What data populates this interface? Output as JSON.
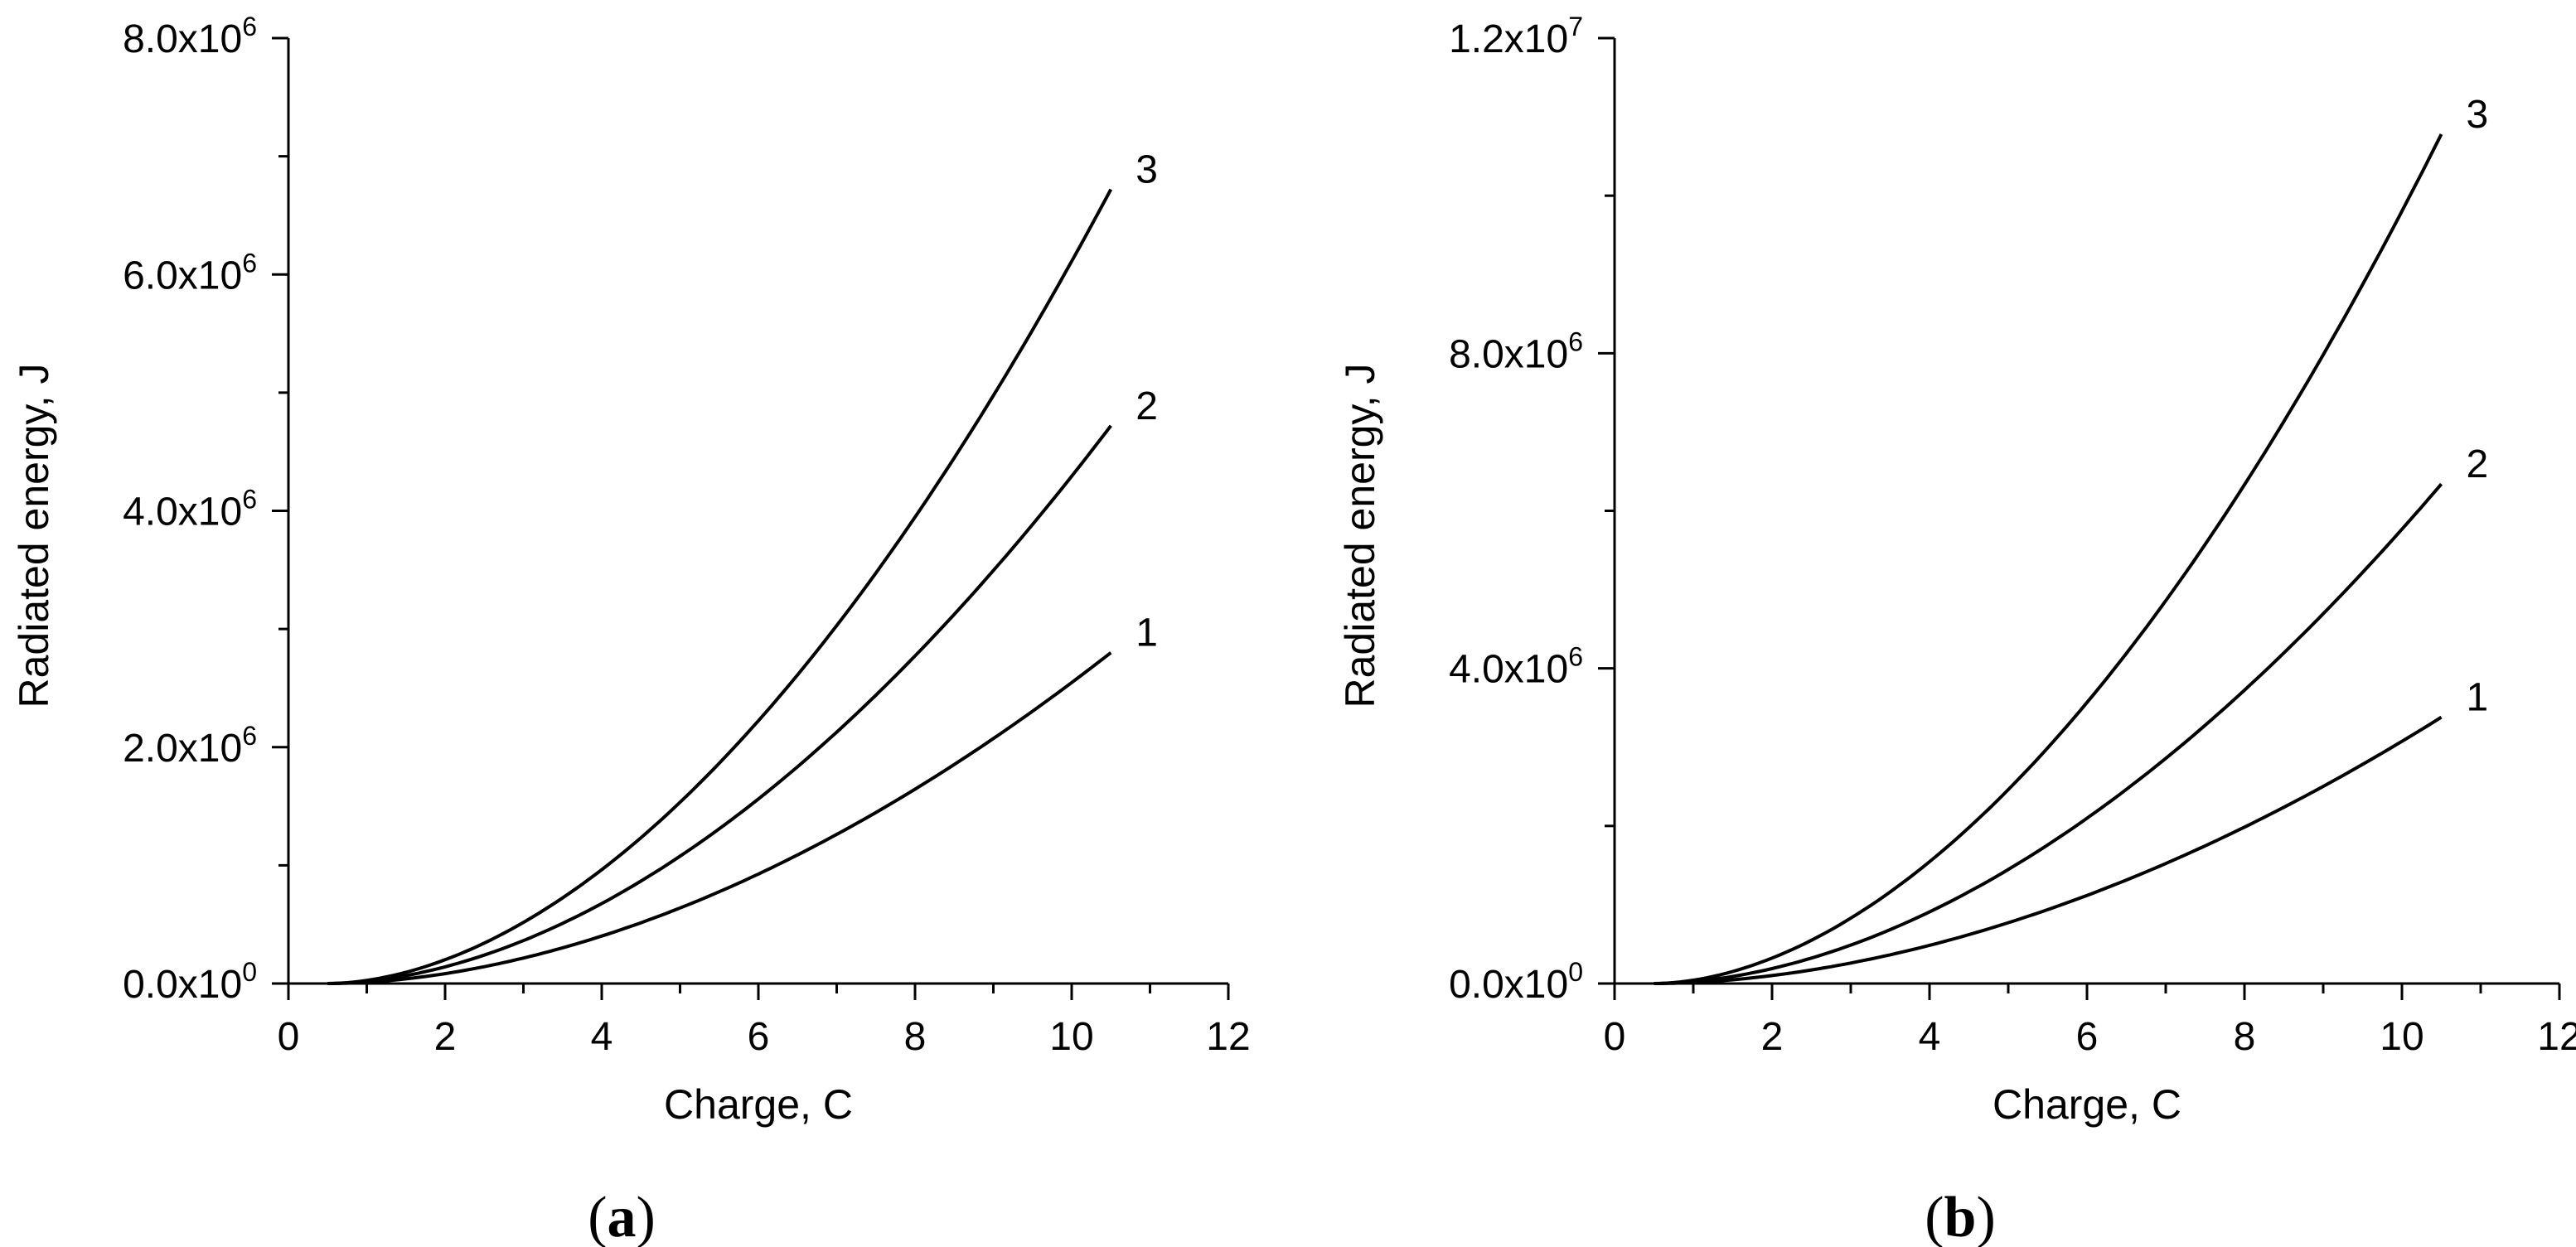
{
  "chart_data": [
    {
      "type": "line",
      "panel_label": "a",
      "xlabel": "Charge, C",
      "ylabel": "Radiated energy, J",
      "xlim": [
        0,
        12
      ],
      "ylim": [
        0,
        8000000
      ],
      "x_ticks": [
        0,
        2,
        4,
        6,
        8,
        10,
        12
      ],
      "x_tick_labels": [
        "0",
        "2",
        "4",
        "6",
        "8",
        "10",
        "12"
      ],
      "y_ticks": [
        0,
        2000000,
        4000000,
        6000000,
        8000000
      ],
      "y_tick_labels": [
        {
          "mantissa": "0.0x10",
          "exp": "0"
        },
        {
          "mantissa": "2.0x10",
          "exp": "6"
        },
        {
          "mantissa": "4.0x10",
          "exp": "6"
        },
        {
          "mantissa": "6.0x10",
          "exp": "6"
        },
        {
          "mantissa": "8.0x10",
          "exp": "6"
        }
      ],
      "series": [
        {
          "name": "1",
          "x_start": 0.5,
          "x_end": 10.5,
          "y_end": 2800000
        },
        {
          "name": "2",
          "x_start": 0.5,
          "x_end": 10.5,
          "y_end": 4720000
        },
        {
          "name": "3",
          "x_start": 0.5,
          "x_end": 10.5,
          "y_end": 6720000
        }
      ]
    },
    {
      "type": "line",
      "panel_label": "b",
      "xlabel": "Charge, C",
      "ylabel": "Radiated energy, J",
      "xlim": [
        0,
        12
      ],
      "ylim": [
        0,
        12000000
      ],
      "x_ticks": [
        0,
        2,
        4,
        6,
        8,
        10,
        12
      ],
      "x_tick_labels": [
        "0",
        "2",
        "4",
        "6",
        "8",
        "10",
        "12"
      ],
      "y_ticks": [
        0,
        4000000,
        8000000,
        12000000
      ],
      "y_tick_labels": [
        {
          "mantissa": "0.0x10",
          "exp": "0"
        },
        {
          "mantissa": "4.0x10",
          "exp": "6"
        },
        {
          "mantissa": "8.0x10",
          "exp": "6"
        },
        {
          "mantissa": "1.2x10",
          "exp": "7"
        }
      ],
      "series": [
        {
          "name": "1",
          "x_start": 0.5,
          "x_end": 10.5,
          "y_end": 3380000
        },
        {
          "name": "2",
          "x_start": 0.5,
          "x_end": 10.5,
          "y_end": 6340000
        },
        {
          "name": "3",
          "x_start": 0.5,
          "x_end": 10.5,
          "y_end": 10780000
        }
      ]
    }
  ]
}
